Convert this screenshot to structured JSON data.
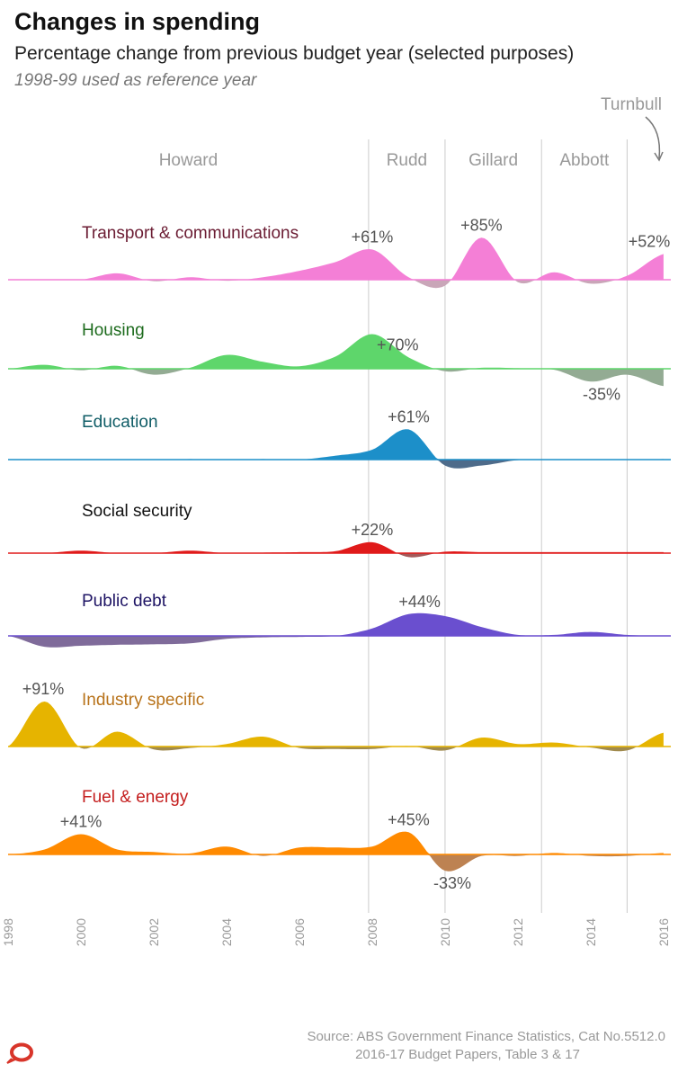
{
  "header": {
    "title": "Changes in spending",
    "subtitle": "Percentage change from previous budget year (selected purposes)",
    "note": "1998-99 used as reference year"
  },
  "source": {
    "line1": "Source: ABS Government Finance Statistics, Cat No.5512.0",
    "line2": "2016-17 Budget Papers, Table 3 & 17"
  },
  "colors": {
    "logo": "#d8352a",
    "separator": "#cccccc"
  },
  "chart_data": {
    "type": "area",
    "x_label_ticks": [
      1998,
      2000,
      2002,
      2004,
      2006,
      2008,
      2010,
      2012,
      2014,
      2016
    ],
    "xlim": [
      1998,
      2016.2
    ],
    "prime_ministers": [
      {
        "name": "Howard",
        "start": 1998,
        "end": 2007.9
      },
      {
        "name": "Rudd",
        "start": 2007.9,
        "end": 2010.0
      },
      {
        "name": "Gillard",
        "start": 2010.0,
        "end": 2012.65
      },
      {
        "name": "Abbott",
        "start": 2012.65,
        "end": 2015.0
      },
      {
        "name": "Turnbull",
        "start": 2015.0,
        "end": 2016.2
      }
    ],
    "years": [
      1998,
      1999,
      2000,
      2001,
      2002,
      2003,
      2004,
      2005,
      2006,
      2007,
      2008,
      2009,
      2010,
      2011,
      2012,
      2013,
      2014,
      2015,
      2016
    ],
    "series": [
      {
        "name": "Transport & communications",
        "color": "#f47fd6",
        "neg_color": "#c9a6b8",
        "label_color": "#6b1c33",
        "values": [
          0,
          0,
          0,
          13,
          -3,
          5,
          -2,
          5,
          18,
          36,
          61,
          5,
          -12,
          85,
          -5,
          15,
          -8,
          8,
          52
        ],
        "labels": [
          {
            "text": "+61%",
            "x": 2008,
            "pos": "above"
          },
          {
            "text": "+85%",
            "x": 2011,
            "pos": "above"
          },
          {
            "text": "+52%",
            "x": 2016,
            "pos": "above"
          }
        ]
      },
      {
        "name": "Housing",
        "color": "#5ed66b",
        "neg_color": "#93ab93",
        "label_color": "#1d6b1d",
        "values": [
          0,
          8,
          -3,
          6,
          -12,
          2,
          28,
          14,
          5,
          25,
          70,
          23,
          -5,
          2,
          1,
          -2,
          -26,
          -12,
          -35
        ],
        "labels": [
          {
            "text": "+70%",
            "x": 2008.7,
            "pos": "above"
          },
          {
            "text": "-35%",
            "x": 2014.3,
            "pos": "below"
          }
        ]
      },
      {
        "name": "Education",
        "color": "#1c8fc9",
        "neg_color": "#4e6b8a",
        "label_color": "#0f5c66",
        "values": [
          0,
          0,
          0,
          0,
          0,
          1,
          0,
          1,
          0,
          8,
          20,
          61,
          -12,
          -12,
          -1,
          0,
          0,
          0,
          1
        ],
        "labels": [
          {
            "text": "+61%",
            "x": 2009,
            "pos": "above"
          }
        ]
      },
      {
        "name": "Social security",
        "color": "#e01a1a",
        "neg_color": "#a35a5a",
        "label_color": "#111111",
        "values": [
          0,
          0,
          5,
          0,
          0,
          5,
          0,
          1,
          2,
          4,
          22,
          -8,
          3,
          2,
          2,
          2,
          2,
          2,
          2
        ],
        "labels": [
          {
            "text": "+22%",
            "x": 2008,
            "pos": "above"
          }
        ]
      },
      {
        "name": "Public debt",
        "color": "#6a4fcf",
        "neg_color": "#7f6b9a",
        "label_color": "#1e1464",
        "values": [
          0,
          -22,
          -20,
          -18,
          -17,
          -15,
          -6,
          -3,
          -2,
          0,
          15,
          44,
          40,
          18,
          2,
          2,
          8,
          2,
          0
        ],
        "labels": [
          {
            "text": "+44%",
            "x": 2009.3,
            "pos": "above"
          }
        ]
      },
      {
        "name": "Industry specific",
        "color": "#e6b400",
        "neg_color": "#a08a4d",
        "label_color": "#b8731b",
        "values": [
          0,
          91,
          -3,
          30,
          -6,
          -3,
          5,
          20,
          -3,
          -5,
          -5,
          1,
          -8,
          18,
          5,
          8,
          -2,
          -8,
          28
        ],
        "labels": [
          {
            "text": "+91%",
            "x": 1998.9,
            "pos": "above"
          }
        ]
      },
      {
        "name": "Fuel & energy",
        "color": "#ff8a00",
        "neg_color": "#bd8252",
        "label_color": "#c41e1e",
        "values": [
          0,
          10,
          41,
          10,
          5,
          2,
          16,
          -3,
          14,
          14,
          16,
          45,
          -33,
          -3,
          -3,
          3,
          -3,
          -3,
          3
        ],
        "labels": [
          {
            "text": "+41%",
            "x": 2000,
            "pos": "above"
          },
          {
            "text": "+45%",
            "x": 2009,
            "pos": "above"
          },
          {
            "text": "-33%",
            "x": 2010.2,
            "pos": "below"
          }
        ]
      }
    ]
  }
}
